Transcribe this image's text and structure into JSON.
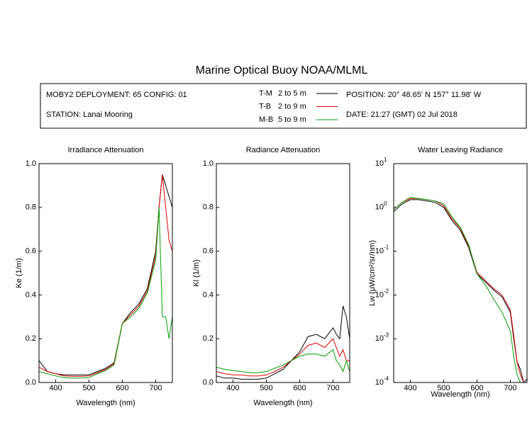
{
  "title": "Marine Optical Buoy NOAA/MLML",
  "info": {
    "deployment": "MOBY2 DEPLOYMENT: 65 CONFIG: 01",
    "station": "STATION: Lanai Mooring",
    "position": "POSITION: 20° 48.65' N   157° 11.98' W",
    "date": "DATE: 21:27 (GMT) 02 Jul 2018"
  },
  "legend_depths": [
    "2 to 5  m",
    "2 to 9  m",
    "5 to 9  m"
  ],
  "chart_data": [
    {
      "type": "line",
      "title": "Irradiance Attenuation",
      "xlabel": "Wavelength (nm)",
      "ylabel": "Ke  (1/m)",
      "x": [
        350,
        375,
        400,
        425,
        450,
        475,
        500,
        525,
        550,
        575,
        600,
        625,
        650,
        675,
        700,
        710,
        720,
        730,
        740,
        750
      ],
      "xlim": [
        350,
        750
      ],
      "xticks": [
        400,
        500,
        600,
        700
      ],
      "ylim": [
        0,
        1
      ],
      "yticks": [
        {
          "value": 0,
          "label": "0.0"
        },
        0.2,
        0.4,
        0.6,
        0.8,
        {
          "value": 1,
          "label": "1.0"
        }
      ],
      "series": [
        {
          "name": "T-M",
          "color": "#000000",
          "values": [
            0.1,
            0.05,
            0.04,
            0.035,
            0.035,
            0.035,
            0.035,
            0.05,
            0.065,
            0.09,
            0.27,
            0.32,
            0.36,
            0.43,
            0.6,
            0.8,
            0.95,
            0.9,
            0.85,
            0.8
          ]
        },
        {
          "name": "T-B",
          "color": "#e00000",
          "values": [
            0.07,
            0.05,
            0.04,
            0.03,
            0.028,
            0.028,
            0.03,
            0.045,
            0.06,
            0.085,
            0.27,
            0.31,
            0.35,
            0.42,
            0.58,
            0.8,
            0.95,
            0.8,
            0.65,
            0.6
          ]
        },
        {
          "name": "M-B",
          "color": "#00a000",
          "values": [
            0.05,
            0.04,
            0.03,
            0.022,
            0.02,
            0.02,
            0.022,
            0.04,
            0.055,
            0.08,
            0.27,
            0.3,
            0.34,
            0.41,
            0.56,
            0.8,
            0.3,
            0.3,
            0.2,
            0.3
          ]
        }
      ]
    },
    {
      "type": "line",
      "title": "Radiance Attenuation",
      "xlabel": "Wavelength (nm)",
      "ylabel": "Kl  (1/m)",
      "x": [
        350,
        375,
        400,
        425,
        450,
        475,
        500,
        525,
        550,
        575,
        600,
        625,
        650,
        675,
        700,
        710,
        720,
        730,
        740,
        750
      ],
      "xlim": [
        350,
        750
      ],
      "xticks": [
        400,
        500,
        600,
        700
      ],
      "ylim": [
        0,
        1
      ],
      "yticks": [
        {
          "value": 0,
          "label": "0.0"
        },
        0.2,
        0.4,
        0.6,
        0.8,
        {
          "value": 1,
          "label": "1.0"
        }
      ],
      "series": [
        {
          "name": "T-M",
          "color": "#000000",
          "values": [
            0.03,
            0.02,
            0.02,
            0.015,
            0.015,
            0.015,
            0.02,
            0.04,
            0.06,
            0.1,
            0.14,
            0.21,
            0.22,
            0.2,
            0.25,
            0.22,
            0.2,
            0.35,
            0.3,
            0.2
          ]
        },
        {
          "name": "T-B",
          "color": "#e00000",
          "values": [
            0.05,
            0.04,
            0.035,
            0.035,
            0.03,
            0.03,
            0.035,
            0.05,
            0.07,
            0.1,
            0.13,
            0.17,
            0.18,
            0.16,
            0.2,
            0.16,
            0.12,
            0.15,
            0.1,
            0.1
          ]
        },
        {
          "name": "M-B",
          "color": "#00a000",
          "values": [
            0.07,
            0.06,
            0.055,
            0.05,
            0.045,
            0.045,
            0.05,
            0.065,
            0.08,
            0.1,
            0.12,
            0.13,
            0.13,
            0.12,
            0.15,
            0.1,
            0.08,
            0.05,
            0.1,
            0.05
          ]
        }
      ]
    },
    {
      "type": "line",
      "title": "Water Leaving Radiance",
      "xlabel": "Wavelength (nm)",
      "ylabel": "Lw  (μW/cm²/sr/nm)",
      "log_y": true,
      "x": [
        350,
        375,
        400,
        425,
        450,
        475,
        500,
        525,
        550,
        575,
        600,
        625,
        650,
        675,
        700,
        710,
        720,
        730,
        740,
        750
      ],
      "xlim": [
        350,
        750
      ],
      "xticks": [
        400,
        500,
        600,
        700
      ],
      "ylim": [
        0.0001,
        10
      ],
      "yticks": [
        {
          "value": 0.0001,
          "label": "10",
          "exponent": "-4"
        },
        {
          "value": 0.001,
          "label": "10",
          "exponent": "-3"
        },
        {
          "value": 0.01,
          "label": "10",
          "exponent": "-2"
        },
        {
          "value": 0.1,
          "label": "10",
          "exponent": "-1"
        },
        {
          "value": 1,
          "label": "10",
          "exponent": "0"
        },
        {
          "value": 10,
          "label": "10",
          "exponent": "1"
        }
      ],
      "series": [
        {
          "name": "T-M",
          "color": "#000000",
          "values": [
            0.8,
            1.2,
            1.5,
            1.5,
            1.4,
            1.3,
            1.0,
            0.5,
            0.3,
            0.12,
            0.03,
            0.02,
            0.013,
            0.009,
            0.004,
            0.001,
            0.0003,
            0.0002,
            0.0001,
            0.00012
          ]
        },
        {
          "name": "T-B",
          "color": "#e00000",
          "values": [
            0.9,
            1.3,
            1.6,
            1.6,
            1.5,
            1.4,
            1.1,
            0.55,
            0.33,
            0.13,
            0.033,
            0.021,
            0.014,
            0.01,
            0.0045,
            0.0012,
            0.0003,
            0.00015,
            0.0001,
            0.0001
          ]
        },
        {
          "name": "M-B",
          "color": "#00a000",
          "values": [
            0.9,
            1.3,
            1.7,
            1.6,
            1.5,
            1.4,
            1.2,
            0.6,
            0.35,
            0.14,
            0.03,
            0.017,
            0.008,
            0.004,
            0.0015,
            0.0004,
            0.00015,
            0.0001,
            0.0001,
            0.0001
          ]
        }
      ]
    }
  ]
}
